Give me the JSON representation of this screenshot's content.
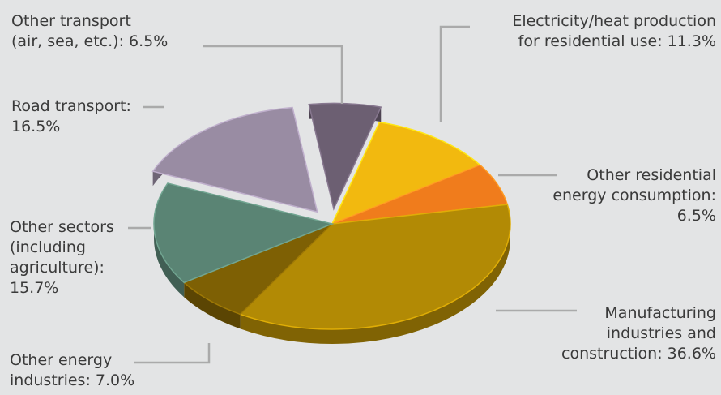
{
  "colors": {
    "background": "#e3e4e5",
    "leader": "#aaaaaa"
  },
  "chart_data": {
    "type": "pie",
    "title": "",
    "slices": [
      {
        "label": "Other transport\n(air, sea, etc.): 6.5%",
        "value": 6.5,
        "color": "#6c5f72",
        "exploded": true
      },
      {
        "label": "Electricity/heat production\nfor residential use: 11.3%",
        "value": 11.3,
        "color": "#f2b90f",
        "exploded": false
      },
      {
        "label": "Other residential\nenergy consumption:\n6.5%",
        "value": 6.5,
        "color": "#f07c1c",
        "exploded": false
      },
      {
        "label": "Manufacturing\nindustries and\nconstruction: 36.6%",
        "value": 36.6,
        "color": "#b28a05",
        "exploded": false
      },
      {
        "label": "Other energy\nindustries: 7.0%",
        "value": 7.0,
        "color": "#7e6004",
        "exploded": false
      },
      {
        "label": "Other sectors\n(including\nagriculture):\n15.7%",
        "value": 15.7,
        "color": "#5a8474",
        "exploded": false
      },
      {
        "label": "Road transport:\n16.5%",
        "value": 16.5,
        "color": "#998ca3",
        "exploded": true
      }
    ]
  }
}
